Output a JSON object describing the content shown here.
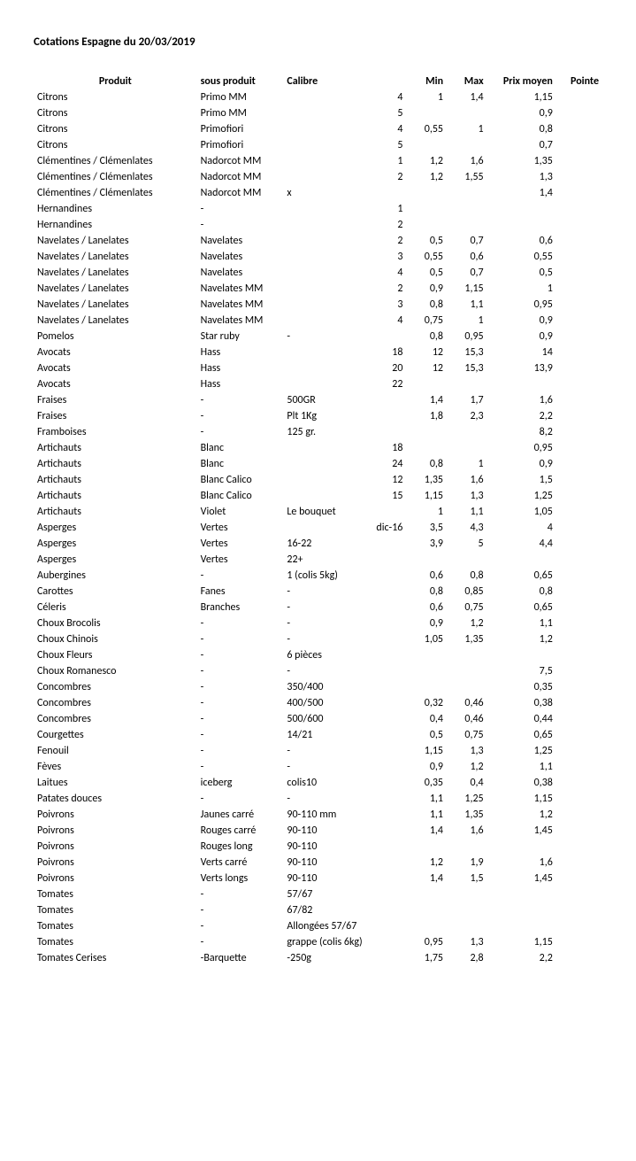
{
  "title": "Cotations Espagne du 20/03/2019",
  "headers": {
    "produit": "Produit",
    "sous_produit": "sous produit",
    "calibre": "Calibre",
    "min": "Min",
    "max": "Max",
    "prix_moyen": "Prix moyen",
    "pointe": "Pointe"
  },
  "rows": [
    {
      "produit": "Citrons",
      "sous": "Primo MM",
      "cal": "",
      "calnum": "4",
      "min": "1",
      "max": "1,4",
      "prix": "1,15",
      "pointe": ""
    },
    {
      "produit": "Citrons",
      "sous": "Primo MM",
      "cal": "",
      "calnum": "5",
      "min": "",
      "max": "",
      "prix": "0,9",
      "pointe": ""
    },
    {
      "produit": "Citrons",
      "sous": "Primofiori",
      "cal": "",
      "calnum": "4",
      "min": "0,55",
      "max": "1",
      "prix": "0,8",
      "pointe": ""
    },
    {
      "produit": "Citrons",
      "sous": "Primofiori",
      "cal": "",
      "calnum": "5",
      "min": "",
      "max": "",
      "prix": "0,7",
      "pointe": ""
    },
    {
      "produit": "Clémentines / Clémenlates",
      "sous": "Nadorcot MM",
      "cal": "",
      "calnum": "1",
      "min": "1,2",
      "max": "1,6",
      "prix": "1,35",
      "pointe": ""
    },
    {
      "produit": "Clémentines / Clémenlates",
      "sous": "Nadorcot MM",
      "cal": "",
      "calnum": "2",
      "min": "1,2",
      "max": "1,55",
      "prix": "1,3",
      "pointe": ""
    },
    {
      "produit": "Clémentines / Clémenlates",
      "sous": "Nadorcot MM",
      "cal": "x",
      "calnum": "",
      "min": "",
      "max": "",
      "prix": "1,4",
      "pointe": ""
    },
    {
      "produit": "Hernandines",
      "sous": "-",
      "cal": "",
      "calnum": "1",
      "min": "",
      "max": "",
      "prix": "",
      "pointe": ""
    },
    {
      "produit": "Hernandines",
      "sous": "-",
      "cal": "",
      "calnum": "2",
      "min": "",
      "max": "",
      "prix": "",
      "pointe": ""
    },
    {
      "produit": "Navelates / Lanelates",
      "sous": "Navelates",
      "cal": "",
      "calnum": "2",
      "min": "0,5",
      "max": "0,7",
      "prix": "0,6",
      "pointe": ""
    },
    {
      "produit": "Navelates / Lanelates",
      "sous": "Navelates",
      "cal": "",
      "calnum": "3",
      "min": "0,55",
      "max": "0,6",
      "prix": "0,55",
      "pointe": ""
    },
    {
      "produit": "Navelates / Lanelates",
      "sous": "Navelates",
      "cal": "",
      "calnum": "4",
      "min": "0,5",
      "max": "0,7",
      "prix": "0,5",
      "pointe": ""
    },
    {
      "produit": "Navelates / Lanelates",
      "sous": "Navelates MM",
      "cal": "",
      "calnum": "2",
      "min": "0,9",
      "max": "1,15",
      "prix": "1",
      "pointe": ""
    },
    {
      "produit": "Navelates / Lanelates",
      "sous": "Navelates MM",
      "cal": "",
      "calnum": "3",
      "min": "0,8",
      "max": "1,1",
      "prix": "0,95",
      "pointe": ""
    },
    {
      "produit": "Navelates / Lanelates",
      "sous": "Navelates MM",
      "cal": "",
      "calnum": "4",
      "min": "0,75",
      "max": "1",
      "prix": "0,9",
      "pointe": ""
    },
    {
      "produit": "Pomelos",
      "sous": "Star ruby",
      "cal": "-",
      "calnum": "",
      "min": "0,8",
      "max": "0,95",
      "prix": "0,9",
      "pointe": ""
    },
    {
      "produit": "Avocats",
      "sous": "Hass",
      "cal": "",
      "calnum": "18",
      "min": "12",
      "max": "15,3",
      "prix": "14",
      "pointe": ""
    },
    {
      "produit": "Avocats",
      "sous": "Hass",
      "cal": "",
      "calnum": "20",
      "min": "12",
      "max": "15,3",
      "prix": "13,9",
      "pointe": ""
    },
    {
      "produit": "Avocats",
      "sous": "Hass",
      "cal": "",
      "calnum": "22",
      "min": "",
      "max": "",
      "prix": "",
      "pointe": ""
    },
    {
      "produit": "Fraises",
      "sous": "-",
      "cal": "500GR",
      "calnum": "",
      "min": "1,4",
      "max": "1,7",
      "prix": "1,6",
      "pointe": ""
    },
    {
      "produit": "Fraises",
      "sous": "-",
      "cal": "Plt 1Kg",
      "calnum": "",
      "min": "1,8",
      "max": "2,3",
      "prix": "2,2",
      "pointe": ""
    },
    {
      "produit": "Framboises",
      "sous": "-",
      "cal": "125 gr.",
      "calnum": "",
      "min": "",
      "max": "",
      "prix": "8,2",
      "pointe": ""
    },
    {
      "produit": "Artichauts",
      "sous": "Blanc",
      "cal": "",
      "calnum": "18",
      "min": "",
      "max": "",
      "prix": "0,95",
      "pointe": ""
    },
    {
      "produit": "Artichauts",
      "sous": "Blanc",
      "cal": "",
      "calnum": "24",
      "min": "0,8",
      "max": "1",
      "prix": "0,9",
      "pointe": ""
    },
    {
      "produit": "Artichauts",
      "sous": "Blanc Calico",
      "cal": "",
      "calnum": "12",
      "min": "1,35",
      "max": "1,6",
      "prix": "1,5",
      "pointe": ""
    },
    {
      "produit": "Artichauts",
      "sous": "Blanc Calico",
      "cal": "",
      "calnum": "15",
      "min": "1,15",
      "max": "1,3",
      "prix": "1,25",
      "pointe": ""
    },
    {
      "produit": "Artichauts",
      "sous": "Violet",
      "cal": "Le bouquet",
      "calnum": "",
      "min": "1",
      "max": "1,1",
      "prix": "1,05",
      "pointe": ""
    },
    {
      "produit": "Asperges",
      "sous": "Vertes",
      "cal": "",
      "calnum": "dic-16",
      "min": "3,5",
      "max": "4,3",
      "prix": "4",
      "pointe": ""
    },
    {
      "produit": "Asperges",
      "sous": "Vertes",
      "cal": "16-22",
      "calnum": "",
      "min": "3,9",
      "max": "5",
      "prix": "4,4",
      "pointe": ""
    },
    {
      "produit": "Asperges",
      "sous": "Vertes",
      "cal": "22+",
      "calnum": "",
      "min": "",
      "max": "",
      "prix": "",
      "pointe": ""
    },
    {
      "produit": "Aubergines",
      "sous": "-",
      "cal": "1 (colis 5kg)",
      "calnum": "",
      "min": "0,6",
      "max": "0,8",
      "prix": "0,65",
      "pointe": ""
    },
    {
      "produit": "Carottes",
      "sous": "Fanes",
      "cal": "-",
      "calnum": "",
      "min": "0,8",
      "max": "0,85",
      "prix": "0,8",
      "pointe": ""
    },
    {
      "produit": "Céleris",
      "sous": "Branches",
      "cal": "-",
      "calnum": "",
      "min": "0,6",
      "max": "0,75",
      "prix": "0,65",
      "pointe": ""
    },
    {
      "produit": "Choux Brocolis",
      "sous": "-",
      "cal": "-",
      "calnum": "",
      "min": "0,9",
      "max": "1,2",
      "prix": "1,1",
      "pointe": ""
    },
    {
      "produit": "Choux Chinois",
      "sous": "-",
      "cal": "-",
      "calnum": "",
      "min": "1,05",
      "max": "1,35",
      "prix": "1,2",
      "pointe": ""
    },
    {
      "produit": "Choux Fleurs",
      "sous": "-",
      "cal": "6 pièces",
      "calnum": "",
      "min": "",
      "max": "",
      "prix": "",
      "pointe": ""
    },
    {
      "produit": "Choux Romanesco",
      "sous": "-",
      "cal": "-",
      "calnum": "",
      "min": "",
      "max": "",
      "prix": "7,5",
      "pointe": ""
    },
    {
      "produit": "Concombres",
      "sous": "-",
      "cal": "350/400",
      "calnum": "",
      "min": "",
      "max": "",
      "prix": "0,35",
      "pointe": ""
    },
    {
      "produit": "Concombres",
      "sous": "-",
      "cal": "400/500",
      "calnum": "",
      "min": "0,32",
      "max": "0,46",
      "prix": "0,38",
      "pointe": ""
    },
    {
      "produit": "Concombres",
      "sous": "-",
      "cal": "500/600",
      "calnum": "",
      "min": "0,4",
      "max": "0,46",
      "prix": "0,44",
      "pointe": ""
    },
    {
      "produit": "Courgettes",
      "sous": "-",
      "cal": "14/21",
      "calnum": "",
      "min": "0,5",
      "max": "0,75",
      "prix": "0,65",
      "pointe": ""
    },
    {
      "produit": "Fenouil",
      "sous": "-",
      "cal": "-",
      "calnum": "",
      "min": "1,15",
      "max": "1,3",
      "prix": "1,25",
      "pointe": ""
    },
    {
      "produit": "Fèves",
      "sous": "-",
      "cal": "-",
      "calnum": "",
      "min": "0,9",
      "max": "1,2",
      "prix": "1,1",
      "pointe": ""
    },
    {
      "produit": "Laitues",
      "sous": "iceberg",
      "cal": "colis10",
      "calnum": "",
      "min": "0,35",
      "max": "0,4",
      "prix": "0,38",
      "pointe": ""
    },
    {
      "produit": "Patates douces",
      "sous": "-",
      "cal": "-",
      "calnum": "",
      "min": "1,1",
      "max": "1,25",
      "prix": "1,15",
      "pointe": ""
    },
    {
      "produit": "Poivrons",
      "sous": "Jaunes carré",
      "cal": "90-110 mm",
      "calnum": "",
      "min": "1,1",
      "max": "1,35",
      "prix": "1,2",
      "pointe": ""
    },
    {
      "produit": "Poivrons",
      "sous": "Rouges carré",
      "cal": "90-110",
      "calnum": "",
      "min": "1,4",
      "max": "1,6",
      "prix": "1,45",
      "pointe": ""
    },
    {
      "produit": "Poivrons",
      "sous": "Rouges long",
      "cal": "90-110",
      "calnum": "",
      "min": "",
      "max": "",
      "prix": "",
      "pointe": ""
    },
    {
      "produit": "Poivrons",
      "sous": "Verts carré",
      "cal": "90-110",
      "calnum": "",
      "min": "1,2",
      "max": "1,9",
      "prix": "1,6",
      "pointe": ""
    },
    {
      "produit": "Poivrons",
      "sous": "Verts longs",
      "cal": "90-110",
      "calnum": "",
      "min": "1,4",
      "max": "1,5",
      "prix": "1,45",
      "pointe": ""
    },
    {
      "produit": "Tomates",
      "sous": "-",
      "cal": "57/67",
      "calnum": "",
      "min": "",
      "max": "",
      "prix": "",
      "pointe": ""
    },
    {
      "produit": "Tomates",
      "sous": "-",
      "cal": "67/82",
      "calnum": "",
      "min": "",
      "max": "",
      "prix": "",
      "pointe": ""
    },
    {
      "produit": "Tomates",
      "sous": "-",
      "cal": "Allongées 57/67",
      "calnum": "",
      "min": "",
      "max": "",
      "prix": "",
      "pointe": ""
    },
    {
      "produit": "Tomates",
      "sous": "-",
      "cal": "grappe (colis 6kg)",
      "calnum": "",
      "min": "0,95",
      "max": "1,3",
      "prix": "1,15",
      "pointe": ""
    },
    {
      "produit": "Tomates Cerises",
      "sous": "-Barquette",
      "cal": "-250g",
      "calnum": "",
      "min": "1,75",
      "max": "2,8",
      "prix": "2,2",
      "pointe": ""
    }
  ]
}
